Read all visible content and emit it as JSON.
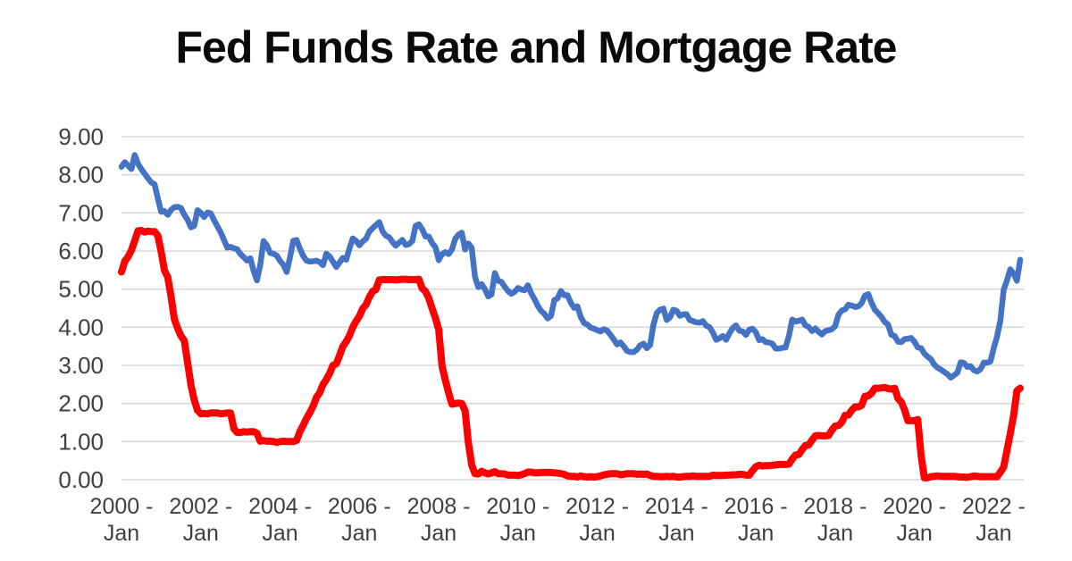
{
  "chart_data": {
    "type": "line",
    "title": "Fed Funds Rate and Mortgage Rate",
    "x_unit": "month",
    "x_range_start": "2000-Jan",
    "x_range_end": "2022-Sep",
    "x_tick_interval_months": 24,
    "x_ticks": [
      {
        "year_line": "2000 -",
        "month_line": "Jan"
      },
      {
        "year_line": "2002 -",
        "month_line": "Jan"
      },
      {
        "year_line": "2004 -",
        "month_line": "Jan"
      },
      {
        "year_line": "2006 -",
        "month_line": "Jan"
      },
      {
        "year_line": "2008 -",
        "month_line": "Jan"
      },
      {
        "year_line": "2010 -",
        "month_line": "Jan"
      },
      {
        "year_line": "2012 -",
        "month_line": "Jan"
      },
      {
        "year_line": "2014 -",
        "month_line": "Jan"
      },
      {
        "year_line": "2016 -",
        "month_line": "Jan"
      },
      {
        "year_line": "2018 -",
        "month_line": "Jan"
      },
      {
        "year_line": "2020 -",
        "month_line": "Jan"
      },
      {
        "year_line": "2022 -",
        "month_line": "Jan"
      }
    ],
    "ylim": [
      0,
      9
    ],
    "y_tick_labels": [
      "0.00",
      "1.00",
      "2.00",
      "3.00",
      "4.00",
      "5.00",
      "6.00",
      "7.00",
      "8.00",
      "9.00"
    ],
    "grid": "horizontal",
    "legend_position": "none",
    "series": [
      {
        "name": "Mortgage Rate",
        "color": "#4472C4",
        "line_width": 6.5,
        "values": [
          8.21,
          8.33,
          8.24,
          8.15,
          8.52,
          8.29,
          8.15,
          8.03,
          7.91,
          7.8,
          7.75,
          7.38,
          7.03,
          7.05,
          6.95,
          7.08,
          7.15,
          7.16,
          7.13,
          6.95,
          6.82,
          6.62,
          6.66,
          7.07,
          7.0,
          6.89,
          7.01,
          6.99,
          6.81,
          6.65,
          6.49,
          6.29,
          6.09,
          6.11,
          6.07,
          6.05,
          5.92,
          5.84,
          5.75,
          5.81,
          5.48,
          5.23,
          5.63,
          6.26,
          6.15,
          5.95,
          5.93,
          5.88,
          5.74,
          5.64,
          5.45,
          5.83,
          6.27,
          6.29,
          6.06,
          5.87,
          5.75,
          5.72,
          5.73,
          5.75,
          5.71,
          5.63,
          5.93,
          5.86,
          5.72,
          5.58,
          5.7,
          5.82,
          5.77,
          6.07,
          6.33,
          6.27,
          6.15,
          6.25,
          6.32,
          6.51,
          6.6,
          6.68,
          6.76,
          6.52,
          6.4,
          6.36,
          6.24,
          6.14,
          6.22,
          6.29,
          6.16,
          6.18,
          6.26,
          6.66,
          6.7,
          6.57,
          6.38,
          6.38,
          6.21,
          6.1,
          5.76,
          5.92,
          5.97,
          5.92,
          6.04,
          6.32,
          6.43,
          6.48,
          6.04,
          6.2,
          6.09,
          5.33,
          5.05,
          5.13,
          5.0,
          4.81,
          4.86,
          5.42,
          5.22,
          5.19,
          5.06,
          4.95,
          4.88,
          4.93,
          5.03,
          4.99,
          4.97,
          5.1,
          4.89,
          4.74,
          4.56,
          4.43,
          4.35,
          4.23,
          4.3,
          4.71,
          4.76,
          4.95,
          4.84,
          4.84,
          4.64,
          4.51,
          4.55,
          4.27,
          4.11,
          4.07,
          3.99,
          3.96,
          3.92,
          3.89,
          3.95,
          3.91,
          3.8,
          3.68,
          3.55,
          3.6,
          3.5,
          3.38,
          3.35,
          3.35,
          3.41,
          3.53,
          3.57,
          3.45,
          3.54,
          4.07,
          4.37,
          4.46,
          4.49,
          4.19,
          4.26,
          4.46,
          4.43,
          4.3,
          4.34,
          4.34,
          4.19,
          4.16,
          4.13,
          4.12,
          4.16,
          4.04,
          4.0,
          3.86,
          3.67,
          3.71,
          3.77,
          3.67,
          3.84,
          3.98,
          4.05,
          3.91,
          3.89,
          3.8,
          3.94,
          3.96,
          3.87,
          3.66,
          3.69,
          3.61,
          3.6,
          3.57,
          3.44,
          3.44,
          3.46,
          3.47,
          3.77,
          4.2,
          4.15,
          4.17,
          4.2,
          4.05,
          4.01,
          3.9,
          3.97,
          3.88,
          3.81,
          3.9,
          3.92,
          3.95,
          4.03,
          4.33,
          4.44,
          4.47,
          4.59,
          4.57,
          4.53,
          4.55,
          4.63,
          4.83,
          4.87,
          4.64,
          4.46,
          4.37,
          4.27,
          4.14,
          4.07,
          3.8,
          3.77,
          3.62,
          3.61,
          3.69,
          3.7,
          3.72,
          3.62,
          3.47,
          3.45,
          3.31,
          3.23,
          3.16,
          3.02,
          2.94,
          2.89,
          2.83,
          2.77,
          2.68,
          2.74,
          2.81,
          3.08,
          3.06,
          2.96,
          2.98,
          2.87,
          2.84,
          2.9,
          3.07,
          3.07,
          3.1,
          3.45,
          3.76,
          4.17,
          4.98,
          5.23,
          5.52,
          5.41,
          5.22,
          5.77
        ]
      },
      {
        "name": "Fed Funds Rate",
        "color": "#FF0000",
        "line_width": 8,
        "values": [
          5.45,
          5.73,
          5.85,
          6.02,
          6.27,
          6.53,
          6.54,
          6.5,
          6.52,
          6.51,
          6.51,
          6.4,
          5.98,
          5.49,
          5.31,
          4.8,
          4.21,
          3.97,
          3.77,
          3.65,
          3.07,
          2.49,
          2.09,
          1.82,
          1.73,
          1.74,
          1.73,
          1.75,
          1.75,
          1.75,
          1.73,
          1.74,
          1.75,
          1.75,
          1.34,
          1.24,
          1.24,
          1.26,
          1.25,
          1.26,
          1.26,
          1.22,
          1.01,
          1.03,
          1.01,
          1.01,
          1.0,
          0.98,
          1.0,
          1.01,
          1.0,
          1.0,
          1.0,
          1.03,
          1.26,
          1.43,
          1.61,
          1.76,
          1.93,
          2.16,
          2.28,
          2.5,
          2.63,
          2.79,
          3.0,
          3.04,
          3.26,
          3.5,
          3.62,
          3.78,
          4.0,
          4.16,
          4.29,
          4.49,
          4.59,
          4.79,
          4.94,
          4.99,
          5.24,
          5.25,
          5.25,
          5.25,
          5.25,
          5.24,
          5.25,
          5.26,
          5.26,
          5.25,
          5.25,
          5.25,
          5.26,
          5.02,
          4.94,
          4.76,
          4.49,
          4.24,
          3.94,
          2.98,
          2.61,
          2.28,
          1.98,
          2.0,
          2.01,
          2.0,
          1.81,
          0.97,
          0.39,
          0.16,
          0.15,
          0.22,
          0.18,
          0.15,
          0.18,
          0.21,
          0.16,
          0.16,
          0.15,
          0.12,
          0.12,
          0.12,
          0.11,
          0.13,
          0.16,
          0.2,
          0.2,
          0.18,
          0.18,
          0.19,
          0.19,
          0.19,
          0.19,
          0.18,
          0.17,
          0.16,
          0.14,
          0.1,
          0.09,
          0.09,
          0.07,
          0.1,
          0.08,
          0.07,
          0.08,
          0.07,
          0.08,
          0.1,
          0.13,
          0.14,
          0.16,
          0.16,
          0.16,
          0.13,
          0.14,
          0.16,
          0.16,
          0.16,
          0.14,
          0.15,
          0.14,
          0.15,
          0.11,
          0.09,
          0.09,
          0.08,
          0.08,
          0.09,
          0.08,
          0.09,
          0.07,
          0.07,
          0.08,
          0.09,
          0.09,
          0.1,
          0.09,
          0.09,
          0.09,
          0.09,
          0.09,
          0.12,
          0.11,
          0.11,
          0.11,
          0.12,
          0.12,
          0.13,
          0.13,
          0.14,
          0.14,
          0.12,
          0.12,
          0.24,
          0.34,
          0.38,
          0.36,
          0.37,
          0.37,
          0.38,
          0.39,
          0.4,
          0.4,
          0.4,
          0.41,
          0.54,
          0.65,
          0.66,
          0.79,
          0.9,
          0.91,
          1.04,
          1.15,
          1.16,
          1.15,
          1.15,
          1.16,
          1.3,
          1.41,
          1.42,
          1.51,
          1.69,
          1.7,
          1.82,
          1.91,
          1.91,
          1.95,
          2.19,
          2.2,
          2.27,
          2.4,
          2.4,
          2.41,
          2.42,
          2.39,
          2.38,
          2.4,
          2.13,
          2.04,
          1.83,
          1.55,
          1.55,
          1.55,
          1.58,
          0.65,
          0.05,
          0.05,
          0.08,
          0.09,
          0.1,
          0.09,
          0.09,
          0.09,
          0.09,
          0.09,
          0.08,
          0.07,
          0.07,
          0.06,
          0.08,
          0.1,
          0.09,
          0.08,
          0.08,
          0.08,
          0.08,
          0.08,
          0.08,
          0.2,
          0.33,
          0.77,
          1.21,
          1.68,
          2.33,
          2.4
        ]
      }
    ]
  },
  "style": {
    "background": "#FFFFFF",
    "gridline_color": "#D7D7D7",
    "axis_label_color": "#3F3F3F",
    "title_color": "#0A0A0A",
    "mortgage_line_color": "#4472C4",
    "fed_funds_line_color": "#FF0000"
  }
}
